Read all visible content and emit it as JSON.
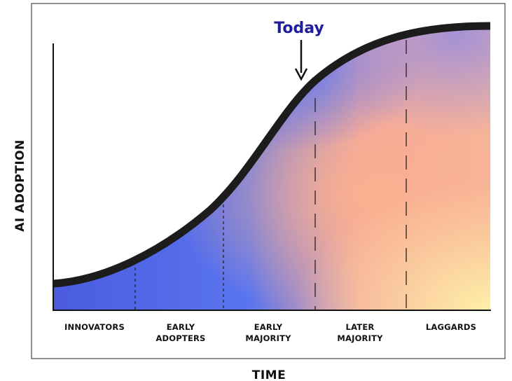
{
  "annotation": "Today",
  "y_axis_label": "AI ADOPTION",
  "x_axis_label": "TIME",
  "stages": [
    {
      "lines": [
        "INNOVATORS"
      ]
    },
    {
      "lines": [
        "EARLY",
        "ADOPTERS"
      ]
    },
    {
      "lines": [
        "EARLY",
        "MAJORITY"
      ]
    },
    {
      "lines": [
        "LATER",
        "MAJORITY"
      ]
    },
    {
      "lines": [
        "LAGGARDS"
      ]
    }
  ]
}
